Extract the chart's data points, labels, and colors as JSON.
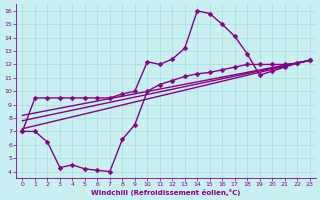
{
  "xlabel": "Windchill (Refroidissement éolien,°C)",
  "background_color": "#c8f0f0",
  "line_color": "#880088",
  "grid_color": "#aadddd",
  "xlim": [
    -0.5,
    23.5
  ],
  "ylim": [
    3.5,
    16.5
  ],
  "yticks": [
    4,
    5,
    6,
    7,
    8,
    9,
    10,
    11,
    12,
    13,
    14,
    15,
    16
  ],
  "xticks": [
    0,
    1,
    2,
    3,
    4,
    5,
    6,
    7,
    8,
    9,
    10,
    11,
    12,
    13,
    14,
    15,
    16,
    17,
    18,
    19,
    20,
    21,
    22,
    23
  ],
  "line1_x": [
    0,
    1,
    2,
    3,
    4,
    5,
    6,
    7,
    8,
    9,
    10,
    11,
    12,
    13,
    14,
    15,
    16,
    17,
    18,
    19,
    20,
    21,
    22,
    23
  ],
  "line1_y": [
    7.0,
    9.5,
    9.5,
    9.5,
    9.5,
    9.5,
    9.5,
    9.5,
    9.8,
    10.0,
    12.2,
    12.0,
    12.4,
    13.2,
    16.0,
    15.8,
    15.0,
    14.1,
    12.8,
    11.2,
    11.5,
    11.8,
    12.1,
    12.3
  ],
  "line2_x": [
    0,
    1,
    2,
    3,
    4,
    5,
    6,
    7,
    8,
    9,
    10,
    11,
    12,
    13,
    14,
    15,
    16,
    17,
    18,
    19,
    20,
    21,
    22,
    23
  ],
  "line2_y": [
    7.0,
    7.0,
    6.2,
    4.3,
    4.5,
    4.2,
    4.1,
    4.0,
    6.4,
    7.5,
    10.0,
    10.5,
    10.8,
    11.1,
    11.3,
    11.4,
    11.6,
    11.8,
    12.0,
    12.0,
    12.0,
    12.0,
    12.1,
    12.3
  ],
  "line3_x": [
    0,
    23
  ],
  "line3_y": [
    7.2,
    12.3
  ],
  "line4_x": [
    0,
    23
  ],
  "line4_y": [
    7.8,
    12.3
  ],
  "line5_x": [
    0,
    23
  ],
  "line5_y": [
    8.2,
    12.3
  ],
  "marker": "D",
  "markersize": 2.5,
  "linewidth": 1.0
}
